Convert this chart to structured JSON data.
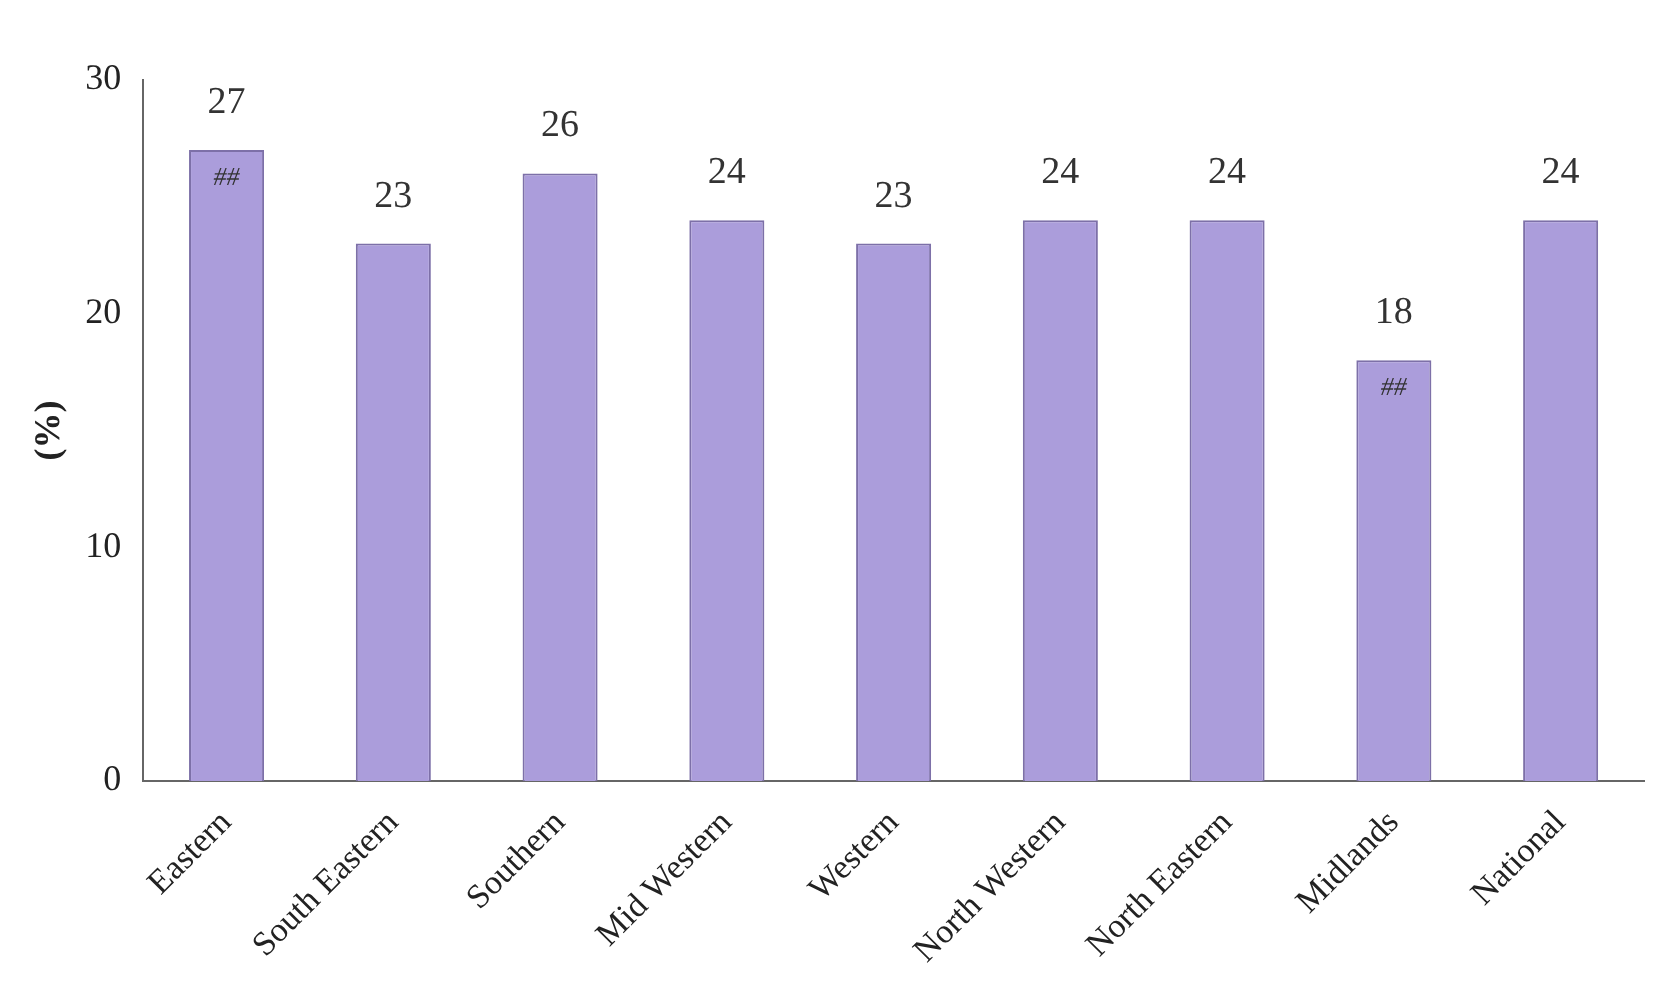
{
  "chart_data": {
    "type": "bar",
    "ylabel": "(%)",
    "categories": [
      "Eastern",
      "South Eastern",
      "Southern",
      "Mid Western",
      "Western",
      "North Western",
      "North Eastern",
      "Midlands",
      "National"
    ],
    "values": [
      27,
      23,
      26,
      24,
      23,
      24,
      24,
      18,
      24
    ],
    "color": "#ab9ddb",
    "ylim": [
      0,
      30
    ],
    "yticks": [
      0,
      10,
      20,
      30
    ],
    "grid": false,
    "legend": false,
    "data_labels": true,
    "annotations": [
      {
        "text": "##",
        "x": "Eastern",
        "y": 27
      },
      {
        "text": "##",
        "x": "Midlands",
        "y": 18
      }
    ]
  }
}
